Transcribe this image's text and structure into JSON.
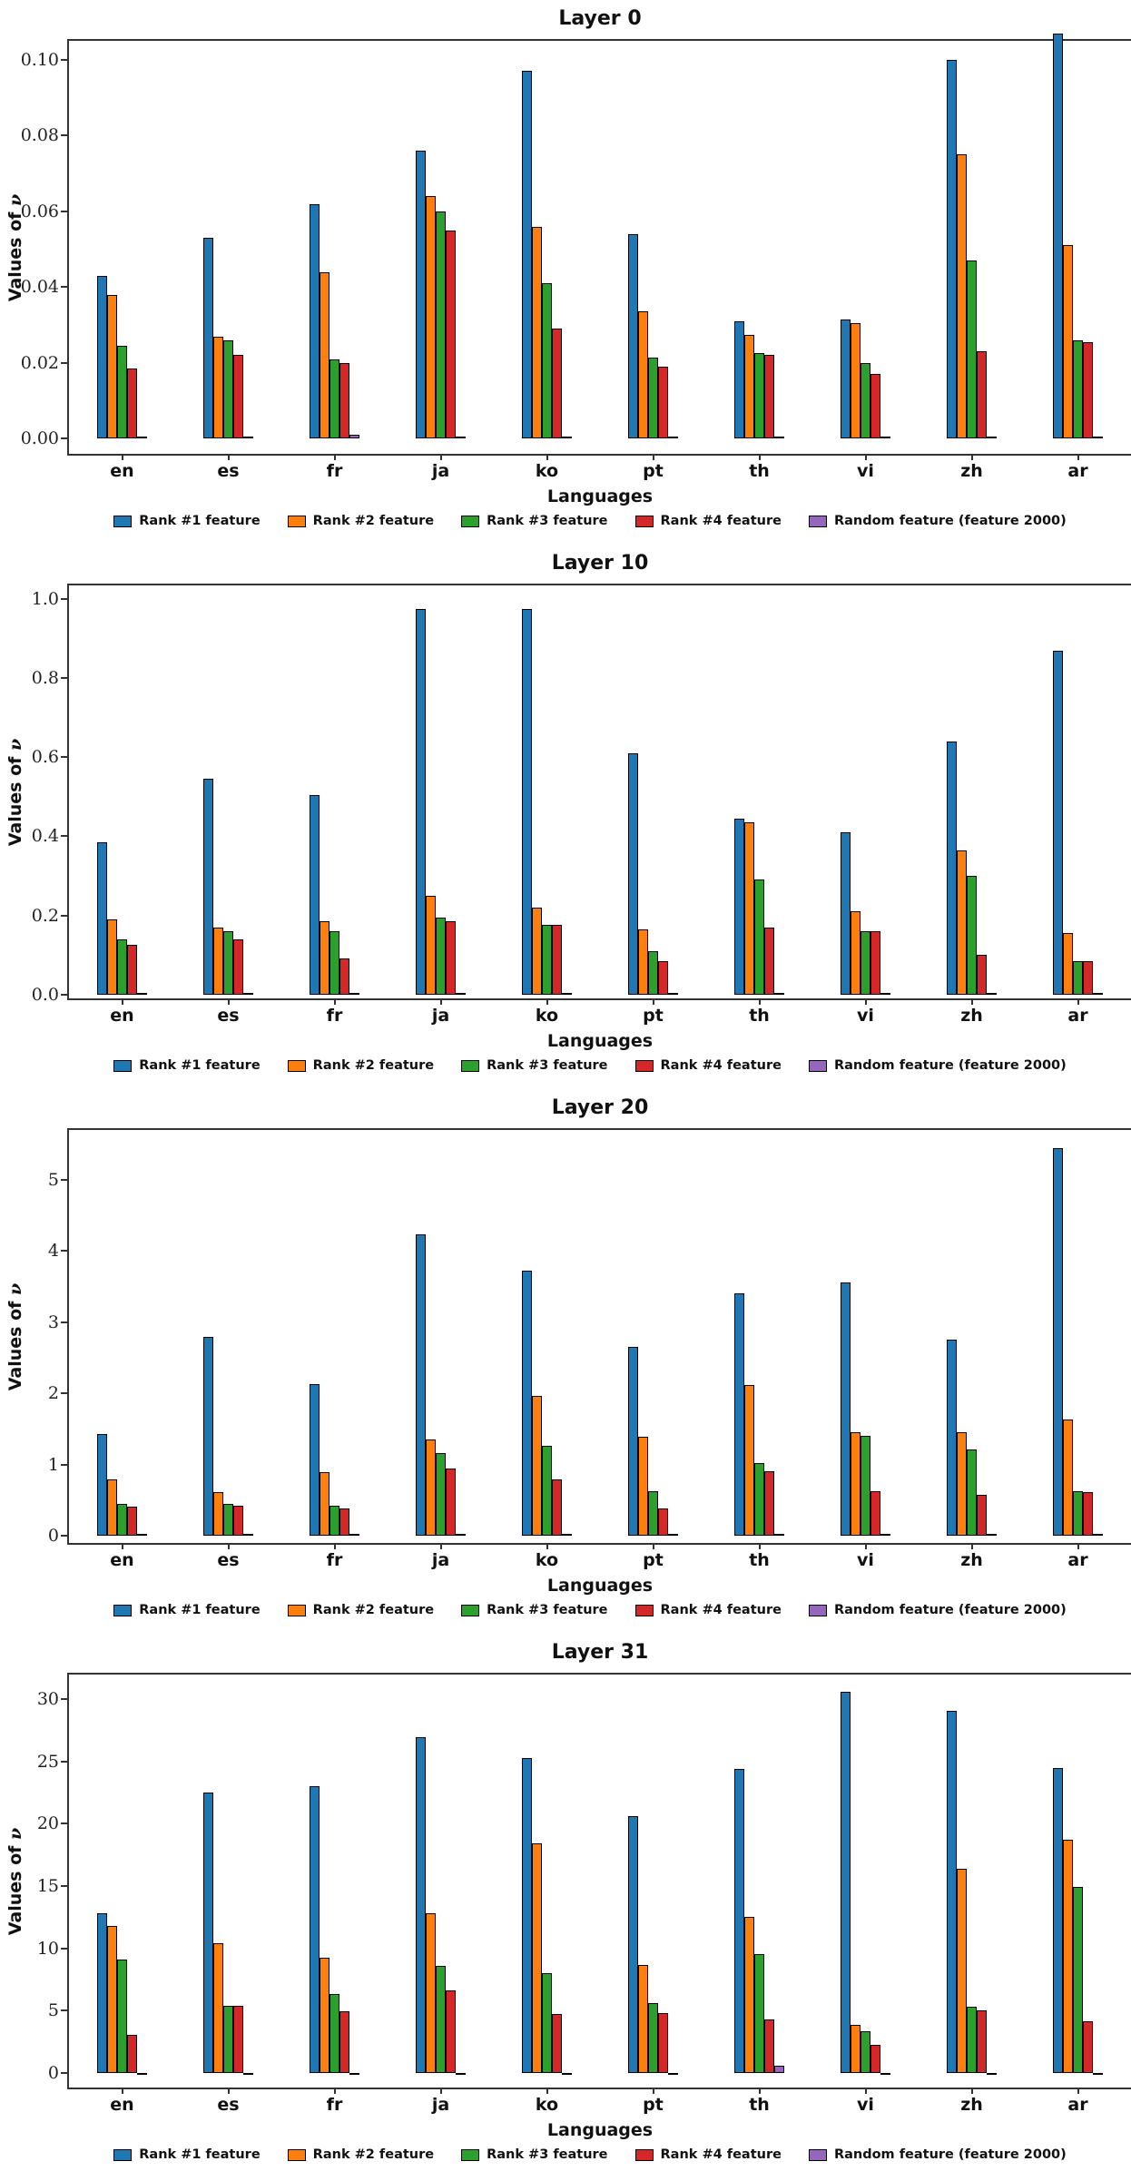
{
  "figure": {
    "ylabel_prefix": "Values of ",
    "ylabel_symbol": "ν",
    "xlabel": "Languages"
  },
  "legend": {
    "items": [
      {
        "label": "Rank #1 feature",
        "color": "#1f77b4"
      },
      {
        "label": "Rank #2 feature",
        "color": "#ff7f0e"
      },
      {
        "label": "Rank #3 feature",
        "color": "#2ca02c"
      },
      {
        "label": "Rank #4 feature",
        "color": "#d62728"
      },
      {
        "label": "Random feature (feature 2000)",
        "color": "#9467bd"
      }
    ]
  },
  "chart_data": [
    {
      "type": "bar",
      "title": "Layer 0",
      "xlabel": "Languages",
      "ylabel": "Values of ν",
      "legend_position": "bottom",
      "grid": false,
      "categories": [
        "en",
        "es",
        "fr",
        "ja",
        "ko",
        "pt",
        "th",
        "vi",
        "zh",
        "ar"
      ],
      "ylim": [
        -0.004,
        0.105
      ],
      "ytick_values": [
        0,
        0.02,
        0.04,
        0.06,
        0.08,
        0.1
      ],
      "ytick_labels": [
        "0.00",
        "0.02",
        "0.04",
        "0.06",
        "0.08",
        "0.10"
      ],
      "series": [
        {
          "name": "Rank #1 feature",
          "values": [
            0.043,
            0.053,
            0.062,
            0.076,
            0.097,
            0.054,
            0.031,
            0.0315,
            0.1,
            0.107
          ]
        },
        {
          "name": "Rank #2 feature",
          "values": [
            0.038,
            0.027,
            0.044,
            0.064,
            0.056,
            0.0335,
            0.0275,
            0.0305,
            0.075,
            0.051
          ]
        },
        {
          "name": "Rank #3 feature",
          "values": [
            0.0245,
            0.026,
            0.021,
            0.06,
            0.041,
            0.0215,
            0.0225,
            0.02,
            0.047,
            0.026
          ]
        },
        {
          "name": "Rank #4 feature",
          "values": [
            0.0185,
            0.022,
            0.02,
            0.055,
            0.029,
            0.019,
            0.022,
            0.017,
            0.023,
            0.0255
          ]
        },
        {
          "name": "Random feature (feature 2000)",
          "values": [
            0.0005,
            0.0005,
            0.001,
            0.0005,
            0.0005,
            0.0005,
            0.0005,
            0.0005,
            0.0005,
            0.0005
          ]
        }
      ]
    },
    {
      "type": "bar",
      "title": "Layer 10",
      "xlabel": "Languages",
      "ylabel": "Values of ν",
      "legend_position": "bottom",
      "grid": false,
      "categories": [
        "en",
        "es",
        "fr",
        "ja",
        "ko",
        "pt",
        "th",
        "vi",
        "zh",
        "ar"
      ],
      "ylim": [
        -0.01,
        1.035
      ],
      "ytick_values": [
        0,
        0.2,
        0.4,
        0.6,
        0.8,
        1.0
      ],
      "ytick_labels": [
        "0.0",
        "0.2",
        "0.4",
        "0.6",
        "0.8",
        "1.0"
      ],
      "series": [
        {
          "name": "Rank #1 feature",
          "values": [
            0.385,
            0.545,
            0.505,
            0.975,
            0.975,
            0.61,
            0.445,
            0.41,
            0.64,
            0.87
          ]
        },
        {
          "name": "Rank #2 feature",
          "values": [
            0.19,
            0.17,
            0.185,
            0.25,
            0.22,
            0.165,
            0.435,
            0.21,
            0.365,
            0.155
          ]
        },
        {
          "name": "Rank #3 feature",
          "values": [
            0.14,
            0.16,
            0.16,
            0.195,
            0.175,
            0.11,
            0.29,
            0.16,
            0.3,
            0.085
          ]
        },
        {
          "name": "Rank #4 feature",
          "values": [
            0.125,
            0.14,
            0.09,
            0.185,
            0.175,
            0.085,
            0.17,
            0.16,
            0.1,
            0.085
          ]
        },
        {
          "name": "Random feature (feature 2000)",
          "values": [
            0.002,
            0.002,
            0.002,
            0.002,
            0.002,
            0.002,
            0.002,
            0.002,
            0.002,
            0.002
          ]
        }
      ]
    },
    {
      "type": "bar",
      "title": "Layer 20",
      "xlabel": "Languages",
      "ylabel": "Values of ν",
      "legend_position": "bottom",
      "grid": false,
      "categories": [
        "en",
        "es",
        "fr",
        "ja",
        "ko",
        "pt",
        "th",
        "vi",
        "zh",
        "ar"
      ],
      "ylim": [
        -0.1,
        5.7
      ],
      "ytick_values": [
        0,
        1,
        2,
        3,
        4,
        5
      ],
      "ytick_labels": [
        "0",
        "1",
        "2",
        "3",
        "4",
        "5"
      ],
      "series": [
        {
          "name": "Rank #1 feature",
          "values": [
            1.43,
            2.8,
            2.13,
            4.23,
            3.72,
            2.65,
            3.4,
            3.56,
            2.75,
            5.45
          ]
        },
        {
          "name": "Rank #2 feature",
          "values": [
            0.79,
            0.61,
            0.9,
            1.35,
            1.96,
            1.39,
            2.12,
            1.46,
            1.46,
            1.63
          ]
        },
        {
          "name": "Rank #3 feature",
          "values": [
            0.45,
            0.45,
            0.42,
            1.16,
            1.27,
            0.63,
            1.02,
            1.41,
            1.21,
            0.63
          ]
        },
        {
          "name": "Rank #4 feature",
          "values": [
            0.41,
            0.42,
            0.39,
            0.95,
            0.79,
            0.38,
            0.91,
            0.63,
            0.58,
            0.61
          ]
        },
        {
          "name": "Random feature (feature 2000)",
          "values": [
            0.005,
            0.005,
            0.005,
            0.005,
            0.005,
            0.005,
            0.005,
            0.005,
            0.005,
            0.005
          ]
        }
      ]
    },
    {
      "type": "bar",
      "title": "Layer 31",
      "xlabel": "Languages",
      "ylabel": "Values of ν",
      "legend_position": "bottom",
      "grid": false,
      "categories": [
        "en",
        "es",
        "fr",
        "ja",
        "ko",
        "pt",
        "th",
        "vi",
        "zh",
        "ar"
      ],
      "ylim": [
        -1.2,
        32
      ],
      "ytick_values": [
        0,
        5,
        10,
        15,
        20,
        25,
        30
      ],
      "ytick_labels": [
        "0",
        "5",
        "10",
        "15",
        "20",
        "25",
        "30"
      ],
      "series": [
        {
          "name": "Rank #1 feature",
          "values": [
            12.8,
            22.5,
            23.0,
            27.0,
            25.3,
            20.6,
            24.4,
            30.6,
            29.1,
            24.5
          ]
        },
        {
          "name": "Rank #2 feature",
          "values": [
            11.8,
            10.4,
            9.2,
            12.8,
            18.4,
            8.65,
            12.5,
            3.8,
            16.4,
            18.7
          ]
        },
        {
          "name": "Rank #3 feature",
          "values": [
            9.1,
            5.4,
            6.3,
            8.6,
            8.0,
            5.6,
            9.5,
            3.3,
            5.3,
            14.9
          ]
        },
        {
          "name": "Rank #4 feature",
          "values": [
            3.0,
            5.35,
            4.9,
            6.6,
            4.7,
            4.8,
            4.3,
            2.2,
            5.0,
            4.1
          ]
        },
        {
          "name": "Random feature (feature 2000)",
          "values": [
            -0.15,
            -0.15,
            -0.1,
            -0.15,
            -0.1,
            -0.1,
            0.55,
            -0.1,
            -0.1,
            -0.1
          ]
        }
      ]
    }
  ]
}
